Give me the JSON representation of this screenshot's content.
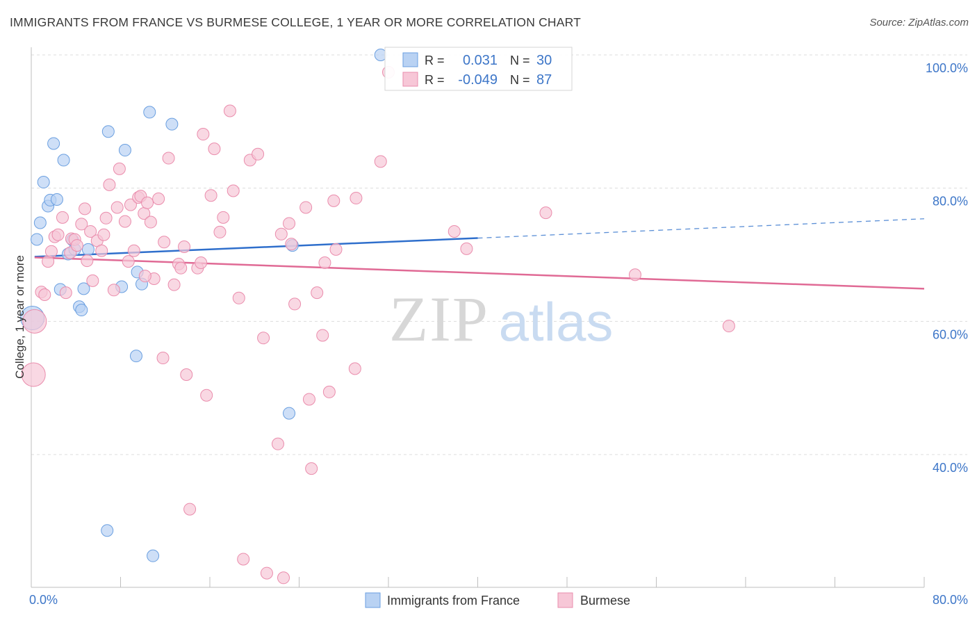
{
  "title": "IMMIGRANTS FROM FRANCE VS BURMESE COLLEGE, 1 YEAR OR MORE CORRELATION CHART",
  "source": "Source: ZipAtlas.com",
  "chart_data": {
    "type": "scatter",
    "title": "IMMIGRANTS FROM FRANCE VS BURMESE COLLEGE, 1 YEAR OR MORE CORRELATION CHART",
    "xlabel": "",
    "ylabel": "College, 1 year or more",
    "xlim": [
      0,
      80
    ],
    "ylim": [
      20,
      102
    ],
    "x_tick_labels": [
      "0.0%",
      "80.0%"
    ],
    "y_tick_values": [
      40,
      60,
      80,
      100
    ],
    "y_tick_labels": [
      "40.0%",
      "60.0%",
      "80.0%",
      "100.0%"
    ],
    "grid": true,
    "watermark": "ZIPatlas",
    "legend": [
      {
        "r_label": "R =",
        "r_value": "0.031",
        "n_label": "N =",
        "n_value": "30"
      },
      {
        "r_label": "R =",
        "r_value": "-0.049",
        "n_label": "N =",
        "n_value": "87"
      }
    ],
    "series": [
      {
        "name": "Immigrants from France",
        "color": "#6a9fe0",
        "fill": "#b9d2f3",
        "trend": {
          "x0": 0.3,
          "y0": 69.7,
          "x1": 40,
          "y1": 72.5,
          "dash_to": 80,
          "dash_y": 75.4
        },
        "points": [
          {
            "x": 0.1,
            "y": 60.5,
            "big": true
          },
          {
            "x": 0.5,
            "y": 72.3
          },
          {
            "x": 0.8,
            "y": 74.8
          },
          {
            "x": 1.1,
            "y": 80.9
          },
          {
            "x": 1.5,
            "y": 77.3
          },
          {
            "x": 1.7,
            "y": 78.2
          },
          {
            "x": 2.0,
            "y": 86.7
          },
          {
            "x": 2.3,
            "y": 78.3
          },
          {
            "x": 2.6,
            "y": 64.8
          },
          {
            "x": 2.9,
            "y": 84.2
          },
          {
            "x": 3.3,
            "y": 70.1
          },
          {
            "x": 3.7,
            "y": 72.2
          },
          {
            "x": 3.9,
            "y": 70.8
          },
          {
            "x": 4.3,
            "y": 62.2
          },
          {
            "x": 4.5,
            "y": 61.7
          },
          {
            "x": 4.7,
            "y": 64.9
          },
          {
            "x": 5.1,
            "y": 70.8
          },
          {
            "x": 6.8,
            "y": 28.6
          },
          {
            "x": 6.9,
            "y": 88.5
          },
          {
            "x": 8.1,
            "y": 65.2
          },
          {
            "x": 8.4,
            "y": 85.7
          },
          {
            "x": 9.4,
            "y": 54.8
          },
          {
            "x": 9.5,
            "y": 67.4
          },
          {
            "x": 9.9,
            "y": 65.6
          },
          {
            "x": 10.6,
            "y": 91.4
          },
          {
            "x": 10.9,
            "y": 24.8
          },
          {
            "x": 12.6,
            "y": 89.6
          },
          {
            "x": 23.4,
            "y": 71.4
          },
          {
            "x": 23.1,
            "y": 46.2
          },
          {
            "x": 31.3,
            "y": 100.0
          }
        ]
      },
      {
        "name": "Burmese",
        "color": "#ea8cac",
        "fill": "#f7c7d7",
        "trend": {
          "x0": 0.3,
          "y0": 69.6,
          "x1": 80,
          "y1": 64.9
        },
        "points": [
          {
            "x": 0.3,
            "y": 60.0,
            "big": true
          },
          {
            "x": 0.2,
            "y": 52.0,
            "big": true
          },
          {
            "x": 0.9,
            "y": 64.4
          },
          {
            "x": 1.2,
            "y": 64.0
          },
          {
            "x": 1.5,
            "y": 69.0
          },
          {
            "x": 1.8,
            "y": 70.5
          },
          {
            "x": 2.1,
            "y": 72.7
          },
          {
            "x": 2.4,
            "y": 73.0
          },
          {
            "x": 2.8,
            "y": 75.6
          },
          {
            "x": 3.1,
            "y": 64.3
          },
          {
            "x": 3.5,
            "y": 70.3
          },
          {
            "x": 3.6,
            "y": 72.4
          },
          {
            "x": 3.9,
            "y": 72.3
          },
          {
            "x": 4.1,
            "y": 71.4
          },
          {
            "x": 4.5,
            "y": 74.6
          },
          {
            "x": 4.8,
            "y": 76.9
          },
          {
            "x": 5.0,
            "y": 69.1
          },
          {
            "x": 5.3,
            "y": 73.5
          },
          {
            "x": 5.5,
            "y": 66.1
          },
          {
            "x": 5.9,
            "y": 72.1
          },
          {
            "x": 6.3,
            "y": 70.6
          },
          {
            "x": 6.5,
            "y": 73.0
          },
          {
            "x": 6.7,
            "y": 75.5
          },
          {
            "x": 7.0,
            "y": 80.5
          },
          {
            "x": 7.4,
            "y": 64.7
          },
          {
            "x": 7.7,
            "y": 77.1
          },
          {
            "x": 7.9,
            "y": 82.9
          },
          {
            "x": 8.4,
            "y": 75.0
          },
          {
            "x": 8.7,
            "y": 69.0
          },
          {
            "x": 8.9,
            "y": 77.5
          },
          {
            "x": 9.2,
            "y": 70.6
          },
          {
            "x": 9.6,
            "y": 78.6
          },
          {
            "x": 9.8,
            "y": 78.8
          },
          {
            "x": 10.1,
            "y": 76.2
          },
          {
            "x": 10.4,
            "y": 77.8
          },
          {
            "x": 10.7,
            "y": 74.9
          },
          {
            "x": 11.0,
            "y": 66.4
          },
          {
            "x": 11.4,
            "y": 78.4
          },
          {
            "x": 11.8,
            "y": 54.5
          },
          {
            "x": 11.9,
            "y": 71.9
          },
          {
            "x": 12.3,
            "y": 84.5
          },
          {
            "x": 12.8,
            "y": 65.5
          },
          {
            "x": 13.2,
            "y": 68.6
          },
          {
            "x": 13.4,
            "y": 68.0
          },
          {
            "x": 13.7,
            "y": 71.2
          },
          {
            "x": 13.9,
            "y": 52.0
          },
          {
            "x": 14.2,
            "y": 31.8
          },
          {
            "x": 14.9,
            "y": 68.0
          },
          {
            "x": 15.2,
            "y": 68.8
          },
          {
            "x": 15.4,
            "y": 88.1
          },
          {
            "x": 15.7,
            "y": 48.9
          },
          {
            "x": 16.1,
            "y": 78.9
          },
          {
            "x": 16.4,
            "y": 85.9
          },
          {
            "x": 16.9,
            "y": 73.4
          },
          {
            "x": 17.2,
            "y": 75.6
          },
          {
            "x": 17.8,
            "y": 91.6
          },
          {
            "x": 18.1,
            "y": 79.6
          },
          {
            "x": 18.6,
            "y": 63.5
          },
          {
            "x": 19.0,
            "y": 24.3
          },
          {
            "x": 19.6,
            "y": 84.2
          },
          {
            "x": 20.3,
            "y": 85.1
          },
          {
            "x": 20.8,
            "y": 57.5
          },
          {
            "x": 21.1,
            "y": 22.2
          },
          {
            "x": 22.1,
            "y": 41.6
          },
          {
            "x": 22.4,
            "y": 73.1
          },
          {
            "x": 22.6,
            "y": 21.5
          },
          {
            "x": 23.1,
            "y": 74.7
          },
          {
            "x": 23.3,
            "y": 71.6
          },
          {
            "x": 23.6,
            "y": 62.6
          },
          {
            "x": 24.6,
            "y": 77.1
          },
          {
            "x": 24.9,
            "y": 48.3
          },
          {
            "x": 25.1,
            "y": 37.9
          },
          {
            "x": 25.6,
            "y": 64.3
          },
          {
            "x": 26.1,
            "y": 57.9
          },
          {
            "x": 26.3,
            "y": 68.8
          },
          {
            "x": 26.7,
            "y": 49.4
          },
          {
            "x": 27.1,
            "y": 78.1
          },
          {
            "x": 27.3,
            "y": 70.8
          },
          {
            "x": 29.0,
            "y": 52.9
          },
          {
            "x": 29.1,
            "y": 78.5
          },
          {
            "x": 31.3,
            "y": 84.0
          },
          {
            "x": 32.0,
            "y": 97.4
          },
          {
            "x": 37.9,
            "y": 73.5
          },
          {
            "x": 39.0,
            "y": 70.9
          },
          {
            "x": 46.1,
            "y": 76.3
          },
          {
            "x": 54.1,
            "y": 67.0
          },
          {
            "x": 62.5,
            "y": 59.3
          },
          {
            "x": 10.2,
            "y": 66.8
          }
        ]
      }
    ]
  }
}
